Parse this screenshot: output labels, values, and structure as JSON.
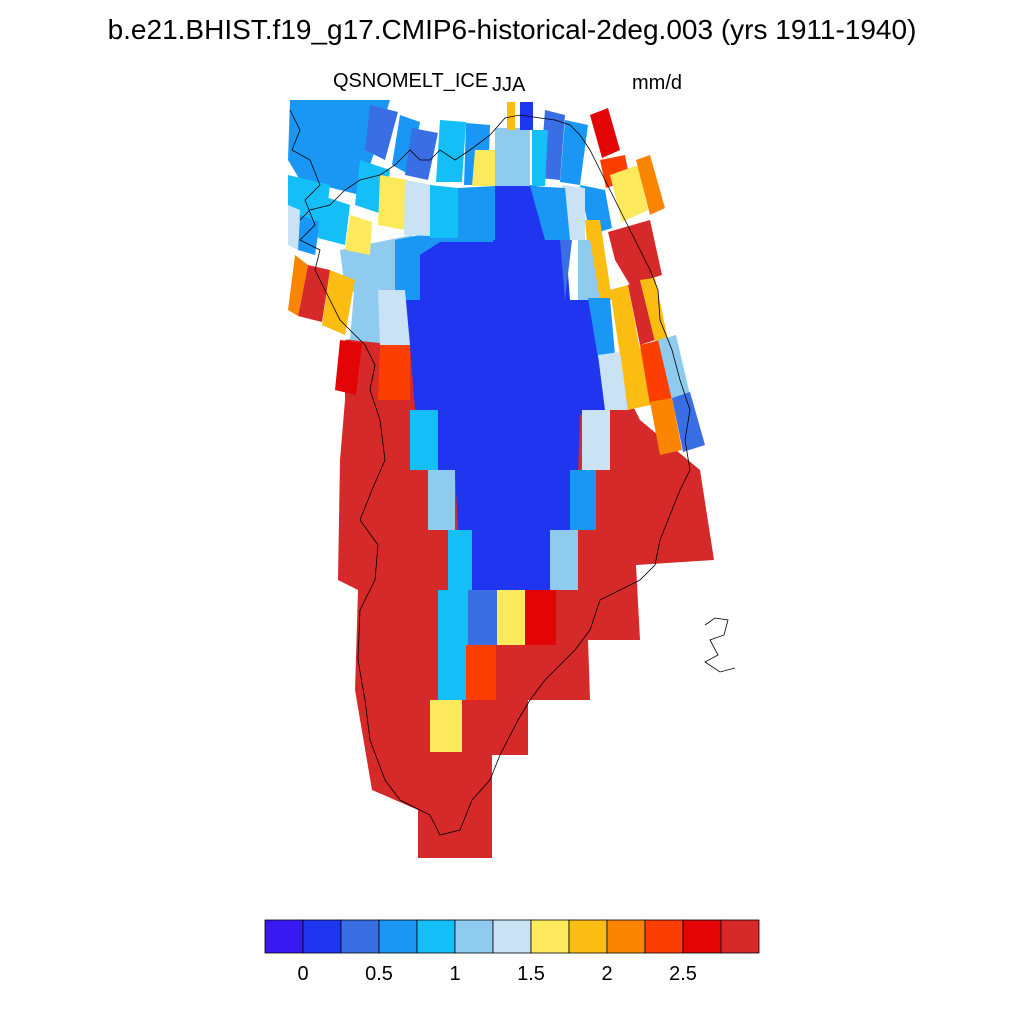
{
  "title": "b.e21.BHIST.f19_g17.CMIP6-historical-2deg.003 (yrs 1911-1940)",
  "variable": "QSNOMELT_ICE",
  "season": "JJA",
  "units": "mm/d",
  "colorbar": {
    "colors": [
      "#3a18f2",
      "#1f35f0",
      "#3a6ee5",
      "#1a97f5",
      "#14bff7",
      "#8ecbee",
      "#c9e3f5",
      "#fde95c",
      "#fbbd12",
      "#fb8500",
      "#fc3e00",
      "#e30405",
      "#d62a2a"
    ],
    "tick_labels": [
      "0",
      "0.5",
      "1",
      "1.5",
      "2",
      "2.5"
    ]
  }
}
